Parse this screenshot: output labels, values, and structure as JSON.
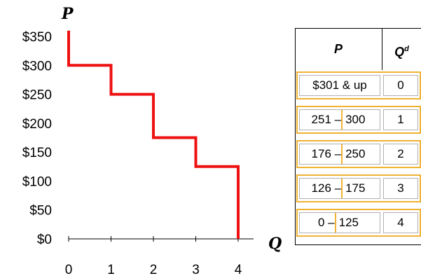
{
  "chart_data": {
    "type": "line",
    "step": true,
    "y_axis_label": "P",
    "x_axis_label": "Q",
    "ylim": [
      0,
      350
    ],
    "xlim": [
      0,
      4
    ],
    "y_ticks": [
      "$0",
      "$50",
      "$100",
      "$150",
      "$200",
      "$250",
      "$300",
      "$350"
    ],
    "x_ticks": [
      "0",
      "1",
      "2",
      "3",
      "4"
    ],
    "series": [
      {
        "color": "#ee1111",
        "points": [
          [
            0,
            360
          ],
          [
            0,
            300
          ],
          [
            1,
            300
          ],
          [
            1,
            250
          ],
          [
            2,
            250
          ],
          [
            2,
            175
          ],
          [
            3,
            175
          ],
          [
            3,
            125
          ],
          [
            4,
            125
          ],
          [
            4,
            0
          ]
        ]
      }
    ]
  },
  "table": {
    "header_p": "P",
    "header_q": "Q",
    "header_q_sup": "d",
    "rows": [
      {
        "p_low": "$301 & up",
        "p_high": "",
        "q": "0"
      },
      {
        "p_low": "251 –",
        "p_high": "300",
        "q": "1"
      },
      {
        "p_low": "176 –",
        "p_high": "250",
        "q": "2"
      },
      {
        "p_low": "126 –",
        "p_high": "175",
        "q": "3"
      },
      {
        "p_low": "0 –",
        "p_high": "125",
        "q": "4"
      }
    ]
  }
}
